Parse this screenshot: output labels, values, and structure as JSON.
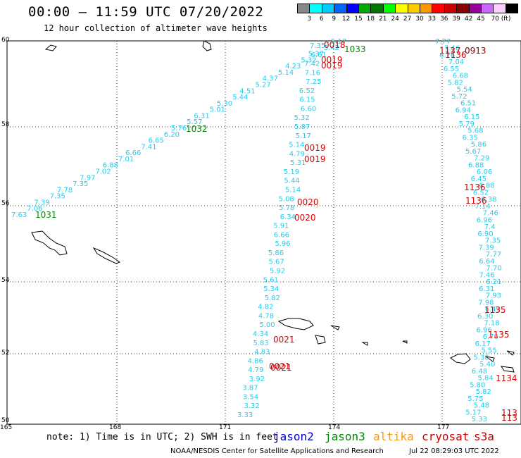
{
  "title": "00:00 – 11:59 UTC 07/20/2022",
  "subtitle": "12 hour collection of altimeter wave heights",
  "color_scale": {
    "colors": [
      "#888888",
      "#00ffff",
      "#00ccff",
      "#0066ff",
      "#0000ff",
      "#00aa00",
      "#007700",
      "#00ff00",
      "#ffff00",
      "#ffcc00",
      "#ff9900",
      "#ff0000",
      "#cc0000",
      "#880000",
      "#990099",
      "#cc66ff",
      "#ffccff",
      "#000000"
    ],
    "labels": [
      "3",
      "6",
      "9",
      "12",
      "15",
      "18",
      "21",
      "24",
      "27",
      "30",
      "33",
      "36",
      "39",
      "42",
      "45",
      "70 (ft)"
    ]
  },
  "axes": {
    "lat_labels": [
      "60",
      "58",
      "56",
      "54",
      "52",
      "50"
    ],
    "lon_labels": [
      "165",
      "168",
      "171",
      "174",
      "177"
    ]
  },
  "note": "note: 1) Time is in UTC; 2) SWH is in feet",
  "satellites": [
    {
      "name": "jason2",
      "color": "#0000dd"
    },
    {
      "name": "jason3",
      "color": "#008800"
    },
    {
      "name": "altika",
      "color": "#ff9900"
    },
    {
      "name": "cryosat",
      "color": "#cc0000"
    },
    {
      "name": "s3a",
      "color": "#cc0000"
    }
  ],
  "credit": "NOAA/NESDIS Center for Satellite Applications and Research",
  "timestamp": "Jul 22 08:29:03 UTC 2022",
  "colors": {
    "swh": "#22ccee",
    "time_red": "#dd0000",
    "time_green": "#008800",
    "time_darkred": "#880000"
  },
  "tracks": {
    "jason3_diag": [
      "7.63",
      "7.06",
      "7.39",
      "7.35",
      "7.78",
      "7.35",
      "7.97",
      "7.02",
      "6.88",
      "7.01",
      "6.66",
      "7.41",
      "6.65",
      "6.20",
      "5.76",
      "5.57",
      "6.31",
      "5.01",
      "5.30",
      "5.44",
      "4.51",
      "5.27",
      "4.37",
      "5.14",
      "4.23",
      "5.32",
      "5.37",
      "5.42",
      "5.17"
    ],
    "jason3_times": [
      "1031",
      "1032",
      "1033"
    ],
    "t173": [
      "7.35",
      "6.61",
      "7.42",
      "7.16",
      "7.25",
      "6.52",
      "6.15",
      "6.60",
      "5.32",
      "5.87",
      "5.17",
      "5.14",
      "4.79",
      "5.31",
      "5.19",
      "5.44",
      "5.14",
      "5.08",
      "5.78",
      "6.34",
      "5.91",
      "6.66",
      "5.96",
      "5.86",
      "5.67",
      "5.92",
      "5.61",
      "5.34",
      "5.82",
      "4.82",
      "4.78",
      "5.00",
      "4.34",
      "5.83",
      "4.83",
      "4.86",
      "4.79",
      "3.92",
      "3.87",
      "3.54",
      "3.32",
      "3.33"
    ],
    "t173_times": [
      "0018",
      "0019",
      "0019",
      "0019",
      "0019",
      "0020",
      "0020",
      "0021",
      "0021",
      "0021"
    ],
    "t177": [
      "7.77",
      "7.46",
      "6.76",
      "7.04",
      "6.55",
      "6.68",
      "5.82",
      "5.54",
      "5.72",
      "6.51",
      "6.94",
      "6.15",
      "5.79",
      "5.68",
      "6.35",
      "5.86",
      "5.67",
      "7.29",
      "6.88",
      "6.06",
      "6.45",
      "6.88",
      "6.52",
      "6.38",
      "7.14",
      "7.46",
      "6.96",
      "7.4",
      "6.90",
      "7.35",
      "7.39",
      "7.77",
      "6.64",
      "7.70",
      "7.46",
      "6.21",
      "6.31",
      "7.93",
      "7.98",
      "6.49",
      "6.30",
      "7.18",
      "6.96",
      "6.70",
      "6.17",
      "5.55",
      "5.30",
      "5.40",
      "6.48",
      "5.84",
      "5.80",
      "5.82",
      "5.75",
      "5.48",
      "5.17",
      "5.33"
    ],
    "t177_times": [
      "1137",
      "1136",
      "0913",
      "1136",
      "1136",
      "1135",
      "1135",
      "1134",
      "113",
      "113"
    ]
  }
}
